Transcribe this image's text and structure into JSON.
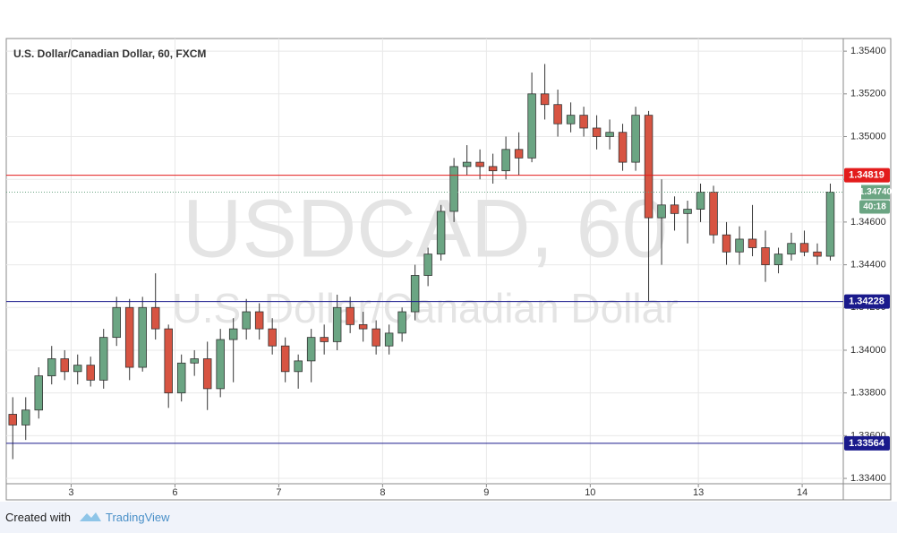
{
  "chart_data": {
    "type": "candlestick",
    "title": "U.S. Dollar/Canadian Dollar, 60, FXCM",
    "watermark": "USDCAD, 60",
    "watermark_subtitle": "U.S. Dollar/Canadian Dollar",
    "x": [
      1.5,
      4.5,
      7.5,
      10.5,
      13.5,
      16.5,
      19.5,
      22.5,
      25.5,
      28.5,
      31.5,
      34.5,
      37.5,
      40.5,
      43.5,
      46.5,
      49.5,
      52.5,
      55.5,
      58.5,
      61.5,
      64.5,
      67.5,
      70.5,
      73.5,
      76.5,
      79.5,
      82.5,
      85.5,
      88.5,
      91.5,
      94.5,
      97.5,
      100.5,
      103.5,
      106.5,
      109.5,
      112.5,
      115.5,
      118.5,
      121.5,
      124.5,
      127.5,
      130.5,
      133.5,
      136.5,
      139.5,
      142.5,
      145.5,
      148.5,
      151.5,
      154.5,
      157.5,
      160.5,
      163.5,
      166.5,
      169.5,
      172.5,
      175.5,
      178.5,
      181.5,
      184.5,
      187.5,
      190.5
    ],
    "open": [
      1.337,
      1.3365,
      1.3372,
      1.3388,
      1.3396,
      1.339,
      1.3393,
      1.3386,
      1.3406,
      1.342,
      1.3392,
      1.342,
      1.341,
      1.338,
      1.3394,
      1.3396,
      1.3382,
      1.3405,
      1.341,
      1.3418,
      1.341,
      1.3402,
      1.339,
      1.3395,
      1.3406,
      1.3404,
      1.342,
      1.3412,
      1.341,
      1.3402,
      1.3408,
      1.3418,
      1.3435,
      1.3445,
      1.3465,
      1.3486,
      1.3488,
      1.3486,
      1.3484,
      1.3494,
      1.349,
      1.352,
      1.3515,
      1.3506,
      1.351,
      1.3504,
      1.35,
      1.3502,
      1.3488,
      1.351,
      1.3462,
      1.3468,
      1.3464,
      1.3466,
      1.3474,
      1.3454,
      1.3446,
      1.3452,
      1.3448,
      1.344,
      1.3445,
      1.345,
      1.3446,
      1.3444
    ],
    "high": [
      1.3378,
      1.3378,
      1.3392,
      1.3402,
      1.34,
      1.3398,
      1.3397,
      1.341,
      1.3425,
      1.3424,
      1.3425,
      1.3436,
      1.3412,
      1.3398,
      1.34,
      1.3404,
      1.341,
      1.3415,
      1.3424,
      1.3422,
      1.3415,
      1.3406,
      1.3398,
      1.341,
      1.3412,
      1.3426,
      1.3425,
      1.3418,
      1.3414,
      1.3412,
      1.342,
      1.344,
      1.3448,
      1.3468,
      1.349,
      1.3496,
      1.3494,
      1.3492,
      1.35,
      1.3502,
      1.353,
      1.3534,
      1.3522,
      1.3516,
      1.3514,
      1.351,
      1.3508,
      1.3506,
      1.3514,
      1.3512,
      1.348,
      1.3472,
      1.347,
      1.3478,
      1.3477,
      1.346,
      1.3458,
      1.3468,
      1.3456,
      1.3448,
      1.3455,
      1.3456,
      1.345,
      1.3478
    ],
    "low": [
      1.3349,
      1.3358,
      1.3368,
      1.3384,
      1.3386,
      1.3384,
      1.3383,
      1.3382,
      1.3402,
      1.3386,
      1.339,
      1.3405,
      1.3373,
      1.3376,
      1.3388,
      1.3372,
      1.3378,
      1.3385,
      1.3405,
      1.3405,
      1.3398,
      1.3385,
      1.3382,
      1.3385,
      1.3398,
      1.34,
      1.3408,
      1.3404,
      1.3398,
      1.3398,
      1.3404,
      1.3414,
      1.343,
      1.3442,
      1.346,
      1.3482,
      1.348,
      1.3478,
      1.348,
      1.3482,
      1.3488,
      1.3508,
      1.35,
      1.3502,
      1.35,
      1.3494,
      1.3494,
      1.3484,
      1.3484,
      1.3423,
      1.344,
      1.3456,
      1.345,
      1.346,
      1.345,
      1.344,
      1.344,
      1.3444,
      1.3432,
      1.3436,
      1.3442,
      1.3444,
      1.344,
      1.3442
    ],
    "close": [
      1.3365,
      1.3372,
      1.3388,
      1.3396,
      1.339,
      1.3393,
      1.3386,
      1.3406,
      1.342,
      1.3392,
      1.342,
      1.341,
      1.338,
      1.3394,
      1.3396,
      1.3382,
      1.3405,
      1.341,
      1.3418,
      1.341,
      1.3402,
      1.339,
      1.3395,
      1.3406,
      1.3404,
      1.342,
      1.3412,
      1.341,
      1.3402,
      1.3408,
      1.3418,
      1.3435,
      1.3445,
      1.3465,
      1.3486,
      1.3488,
      1.3486,
      1.3484,
      1.3494,
      1.349,
      1.352,
      1.3515,
      1.3506,
      1.351,
      1.3504,
      1.35,
      1.3502,
      1.3488,
      1.351,
      1.3462,
      1.3468,
      1.3464,
      1.3466,
      1.3474,
      1.3454,
      1.3446,
      1.3452,
      1.3448,
      1.344,
      1.3445,
      1.345,
      1.3446,
      1.3444,
      1.3474
    ],
    "up_color": "#6ba583",
    "down_color": "#d75442",
    "wick_color": "#333333",
    "xlim": [
      0,
      193.5
    ],
    "xticks": [
      {
        "value": 15,
        "label": "3"
      },
      {
        "value": 39,
        "label": "6"
      },
      {
        "value": 63,
        "label": "7"
      },
      {
        "value": 87,
        "label": "8"
      },
      {
        "value": 111,
        "label": "9"
      },
      {
        "value": 135,
        "label": "10"
      },
      {
        "value": 160,
        "label": "13"
      },
      {
        "value": 184,
        "label": "14"
      }
    ],
    "ylim": [
      1.33375,
      1.35455
    ],
    "yticks": [
      {
        "value": 1.334,
        "label": "1.33400"
      },
      {
        "value": 1.336,
        "label": "1.33600"
      },
      {
        "value": 1.338,
        "label": "1.33800"
      },
      {
        "value": 1.34,
        "label": "1.34000"
      },
      {
        "value": 1.342,
        "label": "1.34200"
      },
      {
        "value": 1.344,
        "label": "1.34400"
      },
      {
        "value": 1.346,
        "label": "1.34600"
      },
      {
        "value": 1.348,
        "label": "1.34800"
      },
      {
        "value": 1.35,
        "label": "1.35000"
      },
      {
        "value": 1.352,
        "label": "1.35200"
      },
      {
        "value": 1.354,
        "label": "1.35400"
      }
    ],
    "grid": true,
    "hlines": [
      {
        "value": 1.34819,
        "label": "1.34819",
        "color": "#e31c1c"
      },
      {
        "value": 1.34228,
        "label": "1.34228",
        "color": "#1a1a8c"
      },
      {
        "value": 1.33564,
        "label": "1.33564",
        "color": "#1a1a8c"
      }
    ],
    "last_price": {
      "value": 1.3474,
      "label": "1.34740",
      "color": "#6ba583"
    },
    "countdown": "40:18"
  },
  "footer": {
    "created_with": "Created with",
    "brand": "TradingView"
  }
}
